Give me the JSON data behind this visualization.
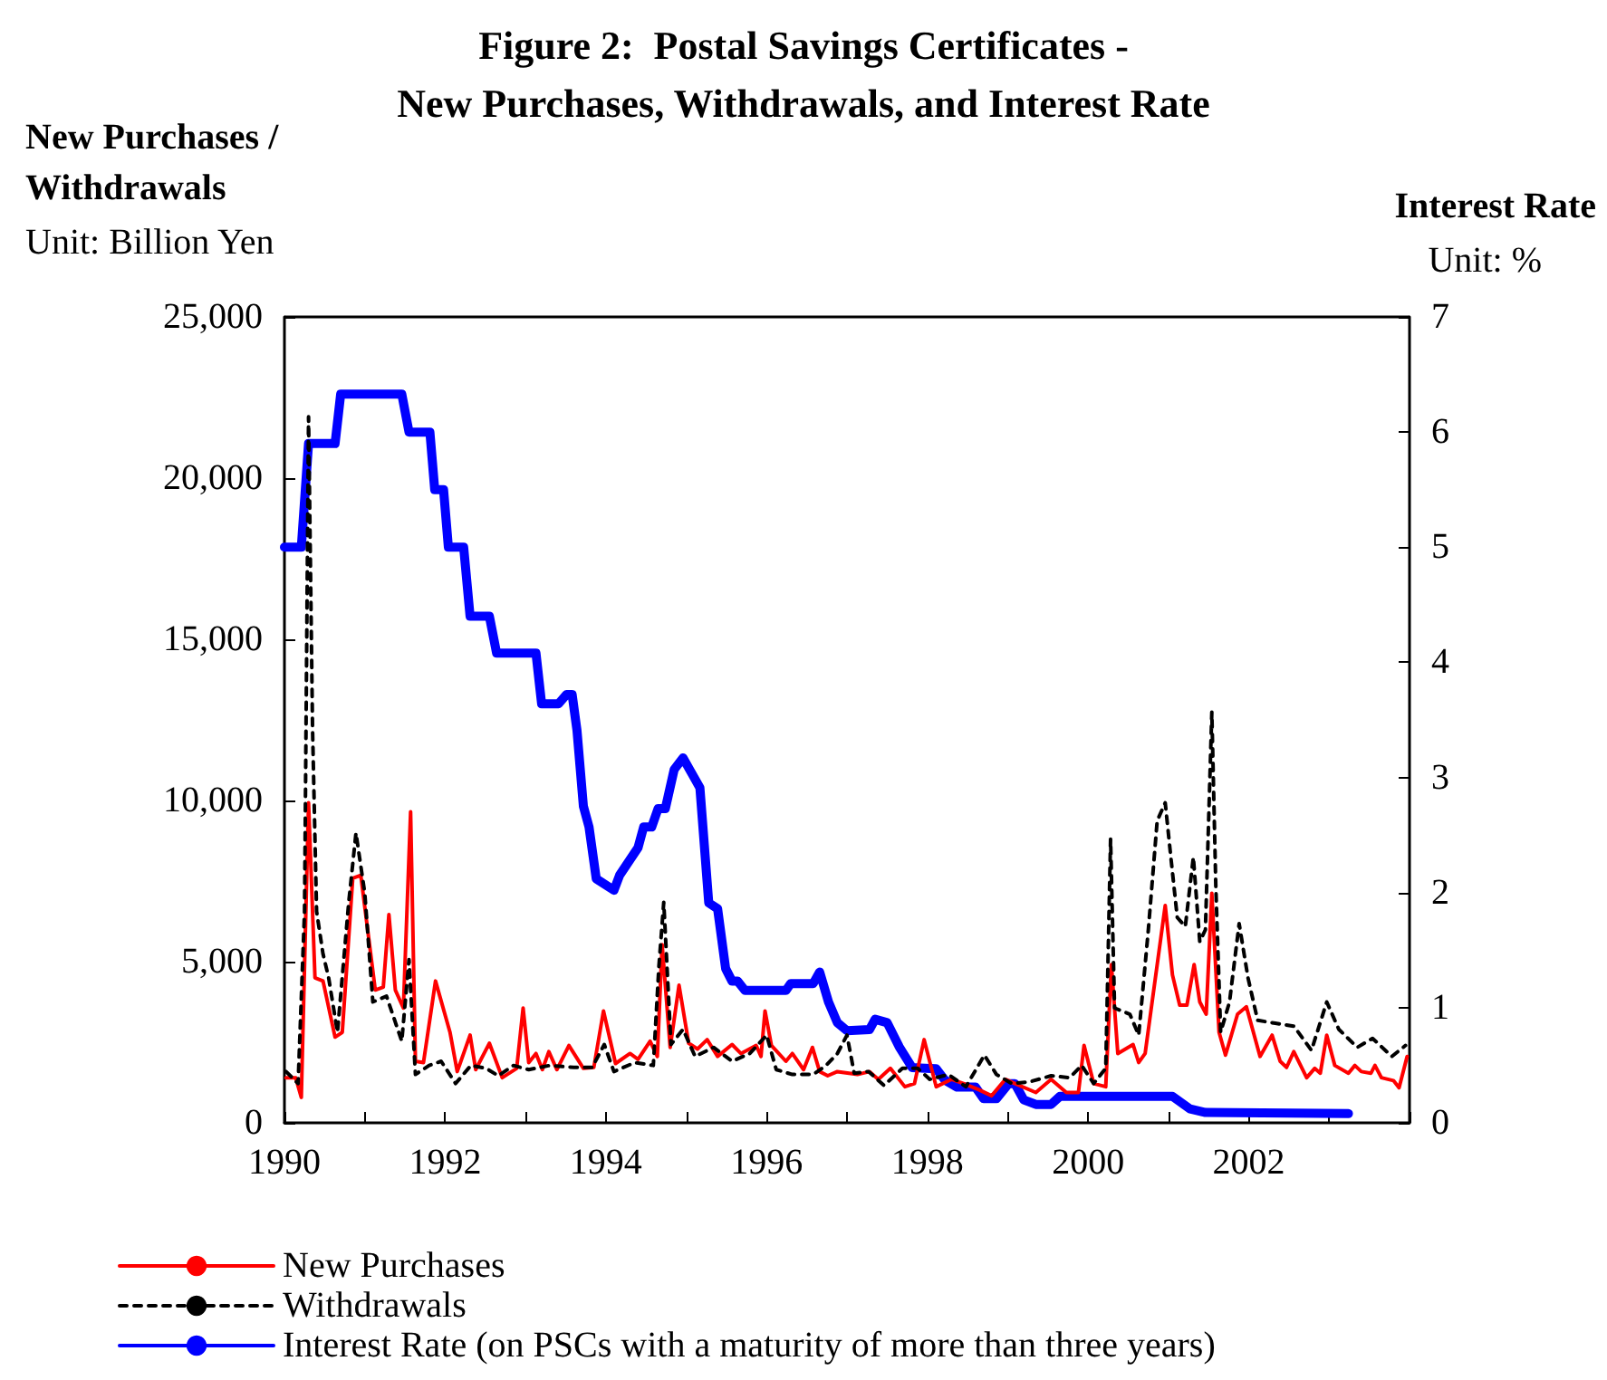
{
  "chart_data": {
    "type": "line",
    "title": "Figure 2:  Postal Savings Certificates -\nNew Purchases, Withdrawals, and Interest Rate",
    "ylabel": "New Purchases /\nWithdrawals",
    "y2label": "Interest Rate",
    "annotations": [
      "Unit: Billion Yen",
      "Unit: %"
    ],
    "xlim": [
      1990,
      2004
    ],
    "xticks": [
      1990,
      {
        "value": 1991,
        "label": null
      },
      1992,
      {
        "value": 1993,
        "label": null
      },
      1994,
      {
        "value": 1995,
        "label": null
      },
      1996,
      {
        "value": 1997,
        "label": null
      },
      1998,
      {
        "value": 1999,
        "label": null
      },
      2000,
      {
        "value": 2001,
        "label": null
      },
      2002,
      {
        "value": 2003,
        "label": null
      },
      {
        "value": 2004,
        "label": null
      }
    ],
    "ylim": [
      0,
      25000
    ],
    "yticks": [
      0,
      {
        "value": 5000,
        "label": "5,000"
      },
      {
        "value": 10000,
        "label": "10,000"
      },
      {
        "value": 15000,
        "label": "15,000"
      },
      {
        "value": 20000,
        "label": "20,000"
      },
      {
        "value": 25000,
        "label": "25,000"
      }
    ],
    "y2lim": [
      0,
      7
    ],
    "y2ticks": [
      0,
      1,
      2,
      3,
      4,
      5,
      6,
      7
    ],
    "grid": false,
    "legend": "bottom left",
    "marker": "none",
    "series": [
      {
        "name": "New Purchases",
        "color": "#ff0000",
        "line_style": "solid",
        "x": [
          1990.02,
          1990.14,
          1990.21,
          1990.3,
          1990.38,
          1990.48,
          1990.63,
          1990.72,
          1990.85,
          1990.95,
          1991.13,
          1991.23,
          1991.3,
          1991.38,
          1991.48,
          1991.57,
          1991.63,
          1991.73,
          1991.88,
          1992.06,
          1992.15,
          1992.31,
          1992.38,
          1992.55,
          1992.71,
          1992.89,
          1992.97,
          1993.04,
          1993.13,
          1993.21,
          1993.29,
          1993.39,
          1993.54,
          1993.72,
          1993.85,
          1993.97,
          1994.12,
          1994.3,
          1994.4,
          1994.55,
          1994.64,
          1994.7,
          1994.8,
          1994.91,
          1995.03,
          1995.14,
          1995.26,
          1995.39,
          1995.57,
          1995.68,
          1995.87,
          1995.93,
          1995.98,
          1996.06,
          1996.24,
          1996.32,
          1996.46,
          1996.57,
          1996.66,
          1996.76,
          1996.88,
          1997.13,
          1997.28,
          1997.39,
          1997.54,
          1997.72,
          1997.84,
          1997.96,
          1998.11,
          1998.3,
          1998.45,
          1998.64,
          1998.8,
          1998.97,
          1999.09,
          1999.35,
          1999.54,
          1999.73,
          1999.88,
          1999.95,
          2000.07,
          2000.22,
          2000.29,
          2000.37,
          2000.56,
          2000.63,
          2000.71,
          2000.96,
          2001.05,
          2001.14,
          2001.23,
          2001.32,
          2001.39,
          2001.47,
          2001.54,
          2001.63,
          2001.71,
          2001.86,
          2001.97,
          2002.14,
          2002.29,
          2002.39,
          2002.47,
          2002.56,
          2002.72,
          2002.82,
          2002.89,
          2002.97,
          2003.07,
          2003.24,
          2003.32,
          2003.4,
          2003.52,
          2003.57,
          2003.65,
          2003.8,
          2003.87,
          2003.97
        ],
        "values": [
          1400,
          1400,
          790,
          9930,
          4500,
          4400,
          2660,
          2810,
          7590,
          7680,
          4120,
          4210,
          6460,
          4120,
          3560,
          9650,
          1910,
          1870,
          4400,
          2810,
          1590,
          2720,
          1650,
          2470,
          1400,
          1690,
          3560,
          1870,
          2150,
          1650,
          2210,
          1650,
          2400,
          1690,
          1720,
          3470,
          1840,
          2150,
          1970,
          2530,
          2060,
          5530,
          2340,
          4270,
          2470,
          2290,
          2580,
          2060,
          2430,
          2150,
          2400,
          2060,
          3470,
          2400,
          1910,
          2150,
          1650,
          2340,
          1590,
          1460,
          1590,
          1500,
          1590,
          1350,
          1690,
          1120,
          1220,
          2580,
          1120,
          1350,
          1220,
          1030,
          840,
          1350,
          1220,
          940,
          1350,
          940,
          940,
          2400,
          1220,
          1120,
          4910,
          2150,
          2430,
          1870,
          2150,
          6740,
          4590,
          3650,
          3650,
          4910,
          3750,
          3370,
          7120,
          2810,
          2100,
          3370,
          3600,
          2060,
          2720,
          1910,
          1720,
          2210,
          1400,
          1690,
          1540,
          2720,
          1780,
          1540,
          1780,
          1590,
          1540,
          1780,
          1400,
          1310,
          1090,
          2060
        ]
      },
      {
        "name": "Withdrawals",
        "color": "#000000",
        "line_style": "dashed",
        "x": [
          1990.02,
          1990.17,
          1990.25,
          1990.3,
          1990.35,
          1990.4,
          1990.48,
          1990.55,
          1990.66,
          1990.8,
          1990.89,
          1991.0,
          1991.1,
          1991.27,
          1991.46,
          1991.55,
          1991.63,
          1991.8,
          1991.95,
          1992.13,
          1992.32,
          1992.51,
          1992.66,
          1992.85,
          1993.04,
          1993.3,
          1993.6,
          1993.83,
          1993.98,
          1994.1,
          1994.36,
          1994.59,
          1994.66,
          1994.72,
          1994.81,
          1994.96,
          1995.11,
          1995.34,
          1995.57,
          1995.79,
          1996.0,
          1996.12,
          1996.32,
          1996.58,
          1996.74,
          1996.88,
          1997.0,
          1997.09,
          1997.27,
          1997.46,
          1997.69,
          1997.88,
          1998.03,
          1998.26,
          1998.48,
          1998.71,
          1998.86,
          1999.05,
          1999.27,
          1999.54,
          1999.77,
          1999.92,
          2000.07,
          2000.22,
          2000.28,
          2000.33,
          2000.52,
          2000.63,
          2000.75,
          2000.86,
          2000.96,
          2001.03,
          2001.11,
          2001.21,
          2001.31,
          2001.39,
          2001.46,
          2001.54,
          2001.59,
          2001.65,
          2001.76,
          2001.88,
          2001.99,
          2002.11,
          2002.33,
          2002.56,
          2002.78,
          2002.97,
          2003.12,
          2003.35,
          2003.54,
          2003.78,
          2003.95
        ],
        "values": [
          1590,
          1220,
          6560,
          21900,
          12200,
          6560,
          5240,
          4500,
          2810,
          6840,
          8990,
          7120,
          3750,
          3930,
          2530,
          5060,
          1500,
          1780,
          1910,
          1220,
          1780,
          1690,
          1460,
          1780,
          1650,
          1780,
          1720,
          1720,
          2430,
          1590,
          1870,
          1780,
          4870,
          6840,
          2430,
          2900,
          2060,
          2340,
          1910,
          2150,
          2720,
          1650,
          1500,
          1500,
          1780,
          2150,
          2720,
          1540,
          1590,
          1160,
          1690,
          1690,
          1350,
          1500,
          1120,
          2100,
          1500,
          1220,
          1270,
          1460,
          1400,
          1780,
          1220,
          1690,
          8800,
          3560,
          3370,
          2720,
          5990,
          9370,
          9930,
          8240,
          6370,
          6090,
          8240,
          5620,
          5990,
          12740,
          7300,
          2810,
          3750,
          6180,
          4500,
          3180,
          3090,
          3000,
          2250,
          3750,
          2900,
          2340,
          2620,
          2060,
          2400
        ]
      },
      {
        "name": "Interest Rate (on PSCs with a maturity of more than three years)",
        "color": "#0000ff",
        "line_style": "solid",
        "axis": "y2",
        "x": [
          1990.0,
          1990.21,
          1990.3,
          1990.63,
          1990.7,
          1991.46,
          1991.55,
          1991.81,
          1991.87,
          1991.98,
          1992.04,
          1992.23,
          1992.31,
          1992.55,
          1992.64,
          1993.13,
          1993.2,
          1993.41,
          1993.51,
          1993.58,
          1993.64,
          1993.72,
          1993.79,
          1993.88,
          1994.1,
          1994.17,
          1994.4,
          1994.47,
          1994.57,
          1994.65,
          1994.74,
          1994.85,
          1994.96,
          1995.17,
          1995.28,
          1995.39,
          1995.49,
          1995.57,
          1995.64,
          1995.73,
          1996.24,
          1996.3,
          1996.58,
          1996.66,
          1996.77,
          1996.88,
          1997.0,
          1997.28,
          1997.35,
          1997.5,
          1997.65,
          1997.81,
          1998.11,
          1998.22,
          1998.37,
          1998.6,
          1998.7,
          1998.86,
          1999.01,
          1999.09,
          1999.2,
          1999.35,
          1999.54,
          1999.65,
          2001.05,
          2001.27,
          2001.46,
          2003.24
        ],
        "values": [
          5.0,
          5.0,
          5.9,
          5.9,
          6.33,
          6.33,
          6.0,
          6.0,
          5.5,
          5.5,
          5.0,
          5.0,
          4.4,
          4.4,
          4.08,
          4.08,
          3.64,
          3.64,
          3.72,
          3.72,
          3.41,
          2.75,
          2.57,
          2.12,
          2.02,
          2.15,
          2.39,
          2.57,
          2.57,
          2.73,
          2.73,
          3.07,
          3.17,
          2.91,
          1.91,
          1.86,
          1.34,
          1.23,
          1.23,
          1.15,
          1.15,
          1.21,
          1.21,
          1.31,
          1.05,
          0.87,
          0.8,
          0.81,
          0.9,
          0.87,
          0.66,
          0.48,
          0.47,
          0.37,
          0.31,
          0.31,
          0.21,
          0.21,
          0.34,
          0.34,
          0.2,
          0.16,
          0.16,
          0.23,
          0.23,
          0.12,
          0.09,
          0.08
        ]
      }
    ]
  }
}
